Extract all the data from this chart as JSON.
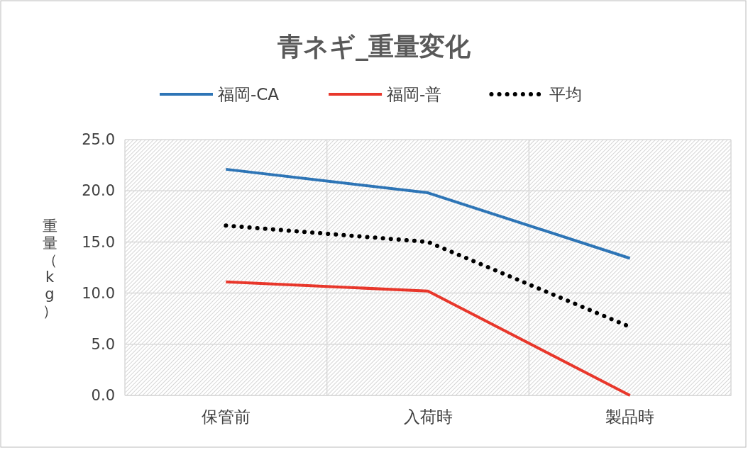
{
  "chart_data": {
    "type": "line",
    "title": "青ネギ_重量変化",
    "ylabel": "重量（kg）",
    "categories": [
      "保管前",
      "入荷時",
      "製品時"
    ],
    "series": [
      {
        "name": "福岡-CA",
        "color": "#2e75b6",
        "values": [
          22.1,
          19.8,
          13.4
        ]
      },
      {
        "name": "福岡-普",
        "color": "#e8372b",
        "values": [
          11.1,
          10.2,
          0.0
        ]
      },
      {
        "name": "平均",
        "color": "#000000",
        "values": [
          16.6,
          15.0,
          6.7
        ],
        "line_style": "dotted"
      }
    ],
    "ylim": [
      0,
      25
    ],
    "yticks": [
      {
        "value": 0,
        "label": "0.0"
      },
      {
        "value": 5,
        "label": "5.0"
      },
      {
        "value": 10,
        "label": "10.0"
      },
      {
        "value": 15,
        "label": "15.0"
      },
      {
        "value": 20,
        "label": "20.0"
      },
      {
        "value": 25,
        "label": "25.0"
      }
    ],
    "grid": true,
    "legend": "top",
    "marker": "none"
  }
}
